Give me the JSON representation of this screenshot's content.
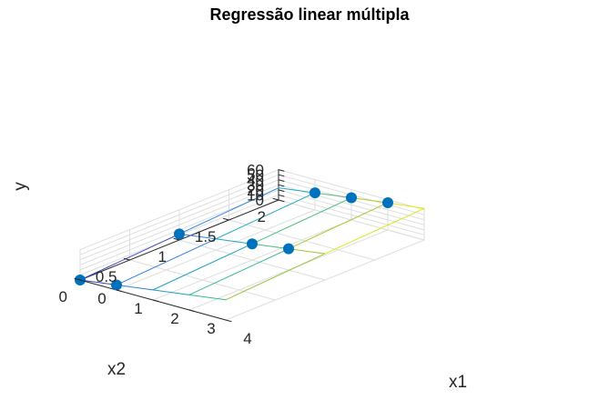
{
  "chart_data": {
    "type": "surface3d",
    "title": "Regressão linear múltipla",
    "xlabel": "x1",
    "ylabel": "x2",
    "zlabel": "y",
    "xlim": [
      0,
      4
    ],
    "ylim": [
      0,
      2
    ],
    "zlim": [
      0,
      60
    ],
    "xticks": [
      "0",
      "1",
      "2",
      "3",
      "4"
    ],
    "yticks": [
      "0",
      "0.5",
      "1",
      "1.5",
      "2"
    ],
    "zticks": [
      "0",
      "10",
      "20",
      "30",
      "40",
      "50",
      "60"
    ],
    "grid": true,
    "colormap": "parula",
    "fit_surface": {
      "x1": [
        0,
        1,
        2,
        3,
        4
      ],
      "x2": [
        0,
        1,
        2
      ],
      "y": [
        [
          0,
          10,
          20,
          30,
          40
        ],
        [
          12,
          22,
          32,
          42,
          52
        ],
        [
          24,
          34,
          44,
          54,
          64
        ]
      ]
    },
    "points": [
      {
        "x1": 0,
        "x2": 0,
        "y": 0
      },
      {
        "x1": 1,
        "x2": 0,
        "y": 10
      },
      {
        "x1": 0,
        "x2": 1,
        "y": 12
      },
      {
        "x1": 2,
        "x2": 1,
        "y": 32
      },
      {
        "x1": 1,
        "x2": 2,
        "y": 34
      },
      {
        "x1": 2,
        "x2": 2,
        "y": 44
      },
      {
        "x1": 3,
        "x2": 2,
        "y": 54
      },
      {
        "x1": 3,
        "x2": 1,
        "y": 42
      }
    ],
    "point_color": "#0072BD"
  }
}
